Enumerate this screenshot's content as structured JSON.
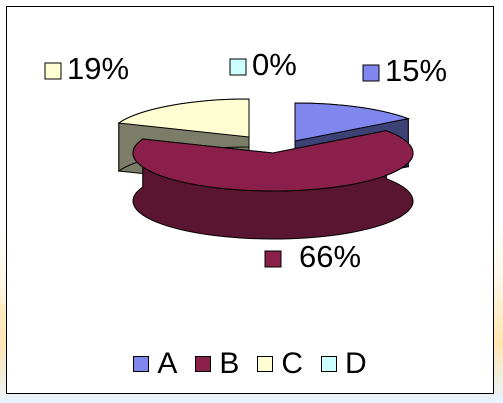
{
  "chart_data": {
    "type": "pie",
    "title": "",
    "categories": [
      "A",
      "B",
      "C",
      "D"
    ],
    "values": [
      15,
      66,
      19,
      0
    ],
    "unit": "%",
    "three_d": true,
    "legend_position": "bottom",
    "labels": [
      {
        "category": "A",
        "text": "15%"
      },
      {
        "category": "B",
        "text": "66%"
      },
      {
        "category": "C",
        "text": "19%"
      },
      {
        "category": "D",
        "text": "0%"
      }
    ]
  },
  "colors": {
    "A": "#7f86ee",
    "B": "#8a2049",
    "C": "#fffdd2",
    "D": "#ccffff",
    "A_side": "#3d4276",
    "B_side": "#5a1531",
    "C_side": "#7c7d68"
  },
  "legend": [
    {
      "label": "A",
      "color": "#7f86ee"
    },
    {
      "label": "B",
      "color": "#8a2049"
    },
    {
      "label": "C",
      "color": "#fffdd2"
    },
    {
      "label": "D",
      "color": "#ccffff"
    }
  ]
}
